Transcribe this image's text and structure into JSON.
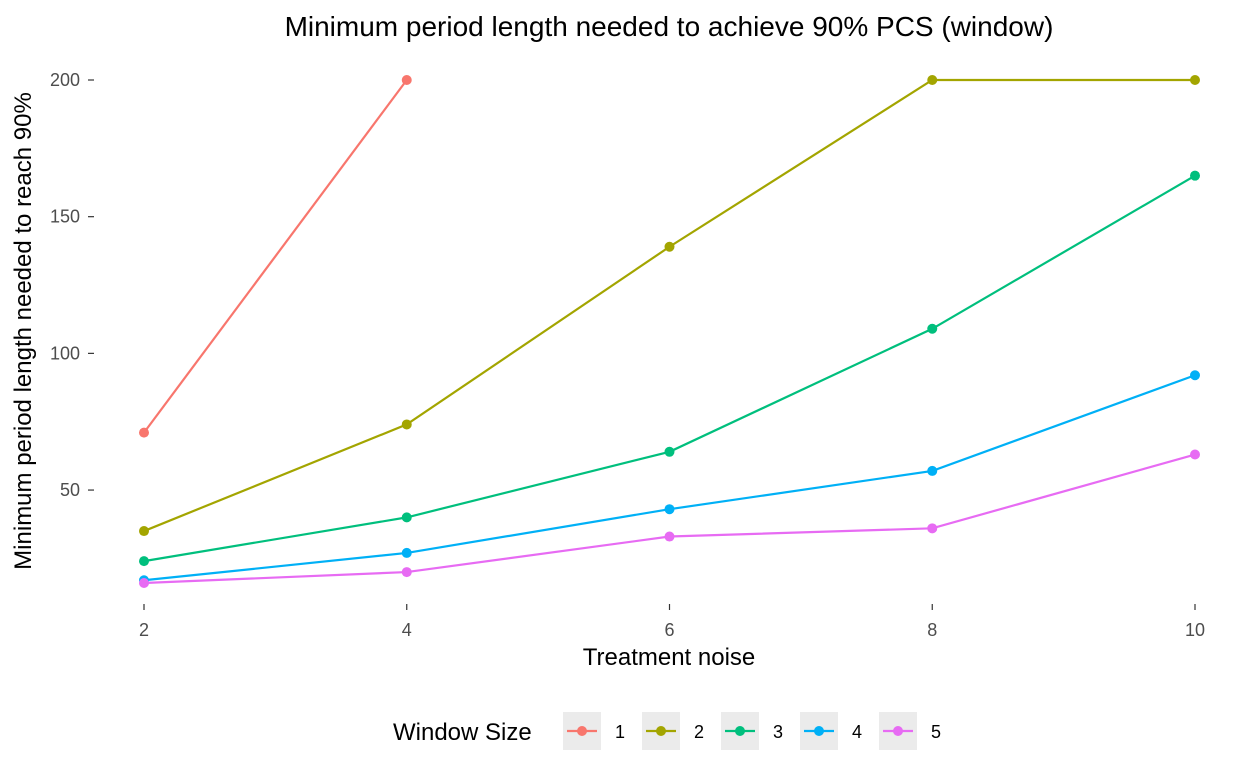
{
  "chart_data": {
    "type": "line",
    "title": "Minimum period length needed to achieve 90% PCS (window)",
    "xlabel": "Treatment noise",
    "ylabel": "Minimum period length needed to reach 90%",
    "x_ticks": [
      2,
      4,
      6,
      8,
      10
    ],
    "y_ticks": [
      50,
      100,
      150,
      200
    ],
    "xlim": [
      2,
      10
    ],
    "ylim": [
      16,
      200
    ],
    "grid": false,
    "legend": {
      "title": "Window Size",
      "position": "bottom"
    },
    "series": [
      {
        "name": "1",
        "color": "#F8766D",
        "x": [
          2,
          4
        ],
        "values": [
          71,
          200
        ]
      },
      {
        "name": "2",
        "color": "#A3A500",
        "x": [
          2,
          4,
          6,
          8,
          10
        ],
        "values": [
          35,
          74,
          139,
          200,
          200
        ]
      },
      {
        "name": "3",
        "color": "#00BF7D",
        "x": [
          2,
          4,
          6,
          8,
          10
        ],
        "values": [
          24,
          40,
          64,
          109,
          165
        ]
      },
      {
        "name": "4",
        "color": "#00B0F6",
        "x": [
          2,
          4,
          6,
          8,
          10
        ],
        "values": [
          17,
          27,
          43,
          57,
          92
        ]
      },
      {
        "name": "5",
        "color": "#E76BF3",
        "x": [
          2,
          4,
          6,
          8,
          10
        ],
        "values": [
          16,
          20,
          33,
          36,
          63
        ]
      }
    ]
  }
}
